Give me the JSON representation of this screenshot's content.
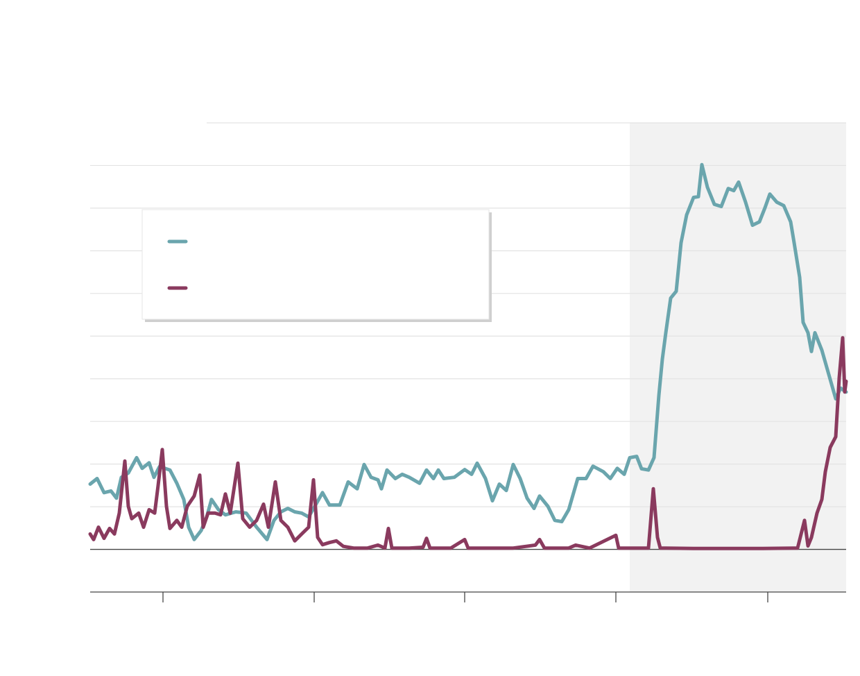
{
  "chart_data": {
    "type": "line",
    "xlim": [
      0,
      109
    ],
    "xticks": [
      10.5,
      32.3,
      54,
      75.8,
      97.7
    ],
    "ylim": [
      -1,
      10
    ],
    "yticks": [
      -1,
      0,
      1,
      2,
      3,
      4,
      5,
      6,
      7,
      8,
      9,
      10
    ],
    "grid": true,
    "highlight_range": [
      77.8,
      109
    ],
    "highlight_color": "#f2f2f2",
    "series": [
      {
        "color": "#6aa5ad",
        "x": [
          0,
          1,
          2,
          3,
          3.8,
          4.5,
          5.5,
          6.7,
          7.5,
          8.5,
          9.2,
          10,
          11.5,
          12.5,
          13.5,
          14.2,
          15,
          16,
          16.8,
          17.5,
          18.5,
          19.5,
          21,
          22.5,
          24,
          25.5,
          26.5,
          27.5,
          28.5,
          29.5,
          30.5,
          31.5,
          32.5,
          33.5,
          34.5,
          36,
          37.2,
          38.5,
          39.5,
          40.5,
          41.5,
          42,
          42.8,
          44,
          45,
          46,
          47.5,
          48.5,
          49.5,
          50.2,
          51,
          52.5,
          54,
          55,
          55.8,
          57,
          58,
          59,
          60,
          61,
          62,
          63,
          64,
          64.8,
          66,
          67,
          68,
          69,
          70.3,
          71.5,
          72.5,
          74,
          75,
          76,
          77,
          77.8,
          78.8,
          79.5,
          80.5,
          81.3,
          82,
          82.5,
          83,
          83.7,
          84.5,
          85.2,
          86,
          87,
          87.7,
          88.2,
          89,
          90,
          91,
          92,
          92.8,
          93.5,
          94.5,
          95.5,
          96.5,
          97.3,
          98,
          99,
          100,
          101,
          101.5,
          102.3,
          102.8,
          103.5,
          104,
          104.5,
          105.5,
          106.5,
          107.5,
          108.2,
          109
        ],
        "values": [
          1.53,
          1.66,
          1.33,
          1.37,
          1.2,
          1.69,
          1.79,
          2.15,
          1.9,
          2.03,
          1.69,
          1.94,
          1.86,
          1.55,
          1.17,
          0.52,
          0.23,
          0.44,
          0.76,
          1.17,
          0.93,
          0.81,
          0.88,
          0.85,
          0.52,
          0.23,
          0.68,
          0.88,
          0.96,
          0.88,
          0.85,
          0.76,
          1.04,
          1.33,
          1.04,
          1.04,
          1.58,
          1.42,
          1.99,
          1.69,
          1.63,
          1.42,
          1.86,
          1.66,
          1.76,
          1.69,
          1.55,
          1.86,
          1.66,
          1.86,
          1.66,
          1.69,
          1.87,
          1.76,
          2.02,
          1.66,
          1.14,
          1.53,
          1.38,
          1.99,
          1.66,
          1.2,
          0.96,
          1.25,
          1.01,
          0.68,
          0.65,
          0.93,
          1.66,
          1.66,
          1.95,
          1.82,
          1.66,
          1.9,
          1.76,
          2.15,
          2.18,
          1.89,
          1.86,
          2.15,
          3.61,
          4.46,
          5.08,
          5.89,
          6.05,
          7.19,
          7.84,
          8.25,
          8.27,
          9.02,
          8.49,
          8.09,
          8.04,
          8.46,
          8.41,
          8.61,
          8.14,
          7.6,
          7.68,
          8.01,
          8.33,
          8.14,
          8.06,
          7.68,
          7.19,
          6.38,
          5.32,
          5.08,
          4.64,
          5.08,
          4.67,
          4.1,
          3.53,
          3.78,
          3.69
        ]
      },
      {
        "color": "#8a3a5e",
        "x": [
          0,
          0.5,
          1.2,
          2,
          2.8,
          3.5,
          4.2,
          5,
          5.5,
          6,
          7,
          7.7,
          8.5,
          9.3,
          9.8,
          10.4,
          11,
          11.5,
          12.5,
          13.2,
          14,
          15,
          15.8,
          16.3,
          17,
          18,
          18.8,
          19.5,
          20.2,
          21.3,
          22,
          23,
          24,
          25,
          25.7,
          26.7,
          27.5,
          28.5,
          29.5,
          30.5,
          31.5,
          32.2,
          32.8,
          33.5,
          34.5,
          35.5,
          36.5,
          38,
          40,
          41.5,
          42.5,
          43,
          43.5,
          46,
          48,
          48.5,
          49,
          52,
          54,
          54.5,
          57,
          61,
          64.2,
          64.8,
          65.5,
          69,
          70,
          72,
          75.8,
          76.2,
          80.5,
          81.2,
          81.8,
          82.2,
          83,
          87,
          97,
          102,
          103,
          103.5,
          104,
          104.8,
          105.5,
          106,
          106.7,
          107.5,
          108,
          108.5,
          108.8,
          109
        ],
        "values": [
          0.36,
          0.23,
          0.52,
          0.26,
          0.49,
          0.36,
          0.85,
          2.07,
          1.01,
          0.72,
          0.85,
          0.52,
          0.93,
          0.85,
          1.5,
          2.34,
          1.01,
          0.49,
          0.68,
          0.52,
          1.01,
          1.25,
          1.74,
          0.52,
          0.85,
          0.85,
          0.81,
          1.3,
          0.85,
          2.02,
          0.72,
          0.52,
          0.68,
          1.06,
          0.52,
          1.58,
          0.68,
          0.52,
          0.2,
          0.36,
          0.52,
          1.63,
          0.28,
          0.11,
          0.16,
          0.2,
          0.07,
          0.03,
          0.03,
          0.1,
          0.03,
          0.49,
          0.03,
          0.03,
          0.05,
          0.26,
          0.03,
          0.03,
          0.23,
          0.03,
          0.03,
          0.03,
          0.1,
          0.23,
          0.03,
          0.03,
          0.1,
          0.03,
          0.33,
          0.03,
          0.03,
          1.42,
          0.28,
          0.03,
          0.03,
          0.02,
          0.02,
          0.03,
          0.68,
          0.08,
          0.28,
          0.85,
          1.17,
          1.82,
          2.39,
          2.64,
          4.02,
          4.96,
          3.69,
          3.94
        ]
      }
    ]
  }
}
